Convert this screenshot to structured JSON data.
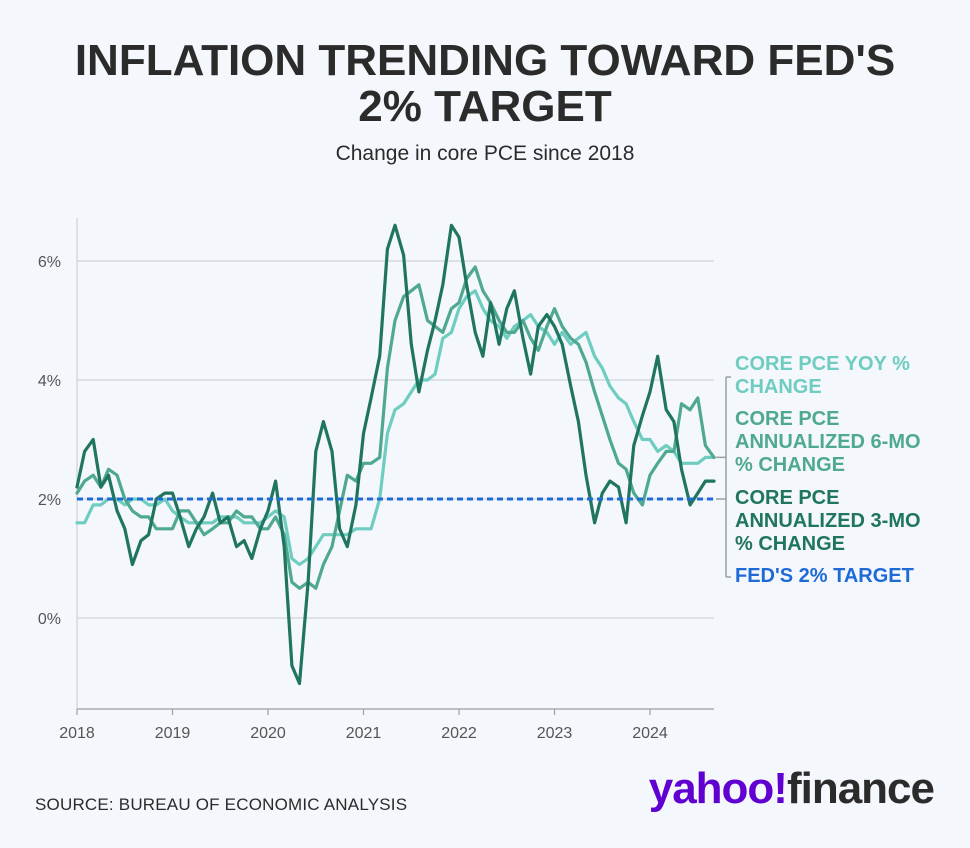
{
  "title": "INFLATION TRENDING TOWARD FED'S\n2% TARGET",
  "subtitle": "Change in core PCE since 2018",
  "source": "SOURCE: BUREAU OF ECONOMIC ANALYSIS",
  "brand": {
    "part1": "yahoo!",
    "part2": "finance"
  },
  "colors": {
    "background": "#f4f7fb",
    "yoy": "#6ecdc0",
    "six_mo": "#4fa990",
    "three_mo": "#1f7560",
    "target": "#1e6ad6",
    "grid": "#d5d9de",
    "axis_text": "#555555"
  },
  "chart_data": {
    "type": "line",
    "title": "INFLATION TRENDING TOWARD FED'S 2% TARGET",
    "subtitle": "Change in core PCE since 2018",
    "x_range": [
      2018.0,
      2024.67
    ],
    "ylim": [
      -1.5,
      6.8
    ],
    "y_ticks": [
      0,
      2,
      4,
      6
    ],
    "y_tick_labels": [
      "0%",
      "2%",
      "4%",
      "6%"
    ],
    "x_ticks": [
      2018,
      2019,
      2020,
      2021,
      2022,
      2023,
      2024
    ],
    "x_tick_labels": [
      "2018",
      "2019",
      "2020",
      "2021",
      "2022",
      "2023",
      "2024"
    ],
    "grid": true,
    "legend_position": "right",
    "target": {
      "name": "FED'S 2% TARGET",
      "value": 2
    },
    "series": [
      {
        "name": "CORE PCE YOY % CHANGE",
        "points": [
          [
            2018.0,
            1.6
          ],
          [
            2018.08,
            1.6
          ],
          [
            2018.17,
            1.9
          ],
          [
            2018.25,
            1.9
          ],
          [
            2018.33,
            2.0
          ],
          [
            2018.42,
            2.0
          ],
          [
            2018.5,
            1.9
          ],
          [
            2018.58,
            2.0
          ],
          [
            2018.67,
            2.0
          ],
          [
            2018.75,
            1.9
          ],
          [
            2018.83,
            1.9
          ],
          [
            2018.92,
            2.0
          ],
          [
            2019.0,
            1.8
          ],
          [
            2019.08,
            1.7
          ],
          [
            2019.17,
            1.6
          ],
          [
            2019.25,
            1.6
          ],
          [
            2019.33,
            1.6
          ],
          [
            2019.42,
            1.6
          ],
          [
            2019.5,
            1.7
          ],
          [
            2019.58,
            1.7
          ],
          [
            2019.67,
            1.7
          ],
          [
            2019.75,
            1.6
          ],
          [
            2019.83,
            1.6
          ],
          [
            2019.92,
            1.6
          ],
          [
            2020.0,
            1.7
          ],
          [
            2020.08,
            1.8
          ],
          [
            2020.17,
            1.7
          ],
          [
            2020.25,
            1.0
          ],
          [
            2020.33,
            0.9
          ],
          [
            2020.42,
            1.0
          ],
          [
            2020.5,
            1.2
          ],
          [
            2020.58,
            1.4
          ],
          [
            2020.67,
            1.4
          ],
          [
            2020.75,
            1.4
          ],
          [
            2020.83,
            1.4
          ],
          [
            2020.92,
            1.5
          ],
          [
            2021.0,
            1.5
          ],
          [
            2021.08,
            1.5
          ],
          [
            2021.17,
            2.0
          ],
          [
            2021.25,
            3.1
          ],
          [
            2021.33,
            3.5
          ],
          [
            2021.42,
            3.6
          ],
          [
            2021.5,
            3.8
          ],
          [
            2021.58,
            4.0
          ],
          [
            2021.67,
            4.0
          ],
          [
            2021.75,
            4.1
          ],
          [
            2021.83,
            4.7
          ],
          [
            2021.92,
            4.8
          ],
          [
            2022.0,
            5.2
          ],
          [
            2022.08,
            5.4
          ],
          [
            2022.17,
            5.5
          ],
          [
            2022.25,
            5.2
          ],
          [
            2022.33,
            5.0
          ],
          [
            2022.42,
            4.9
          ],
          [
            2022.5,
            4.7
          ],
          [
            2022.58,
            4.9
          ],
          [
            2022.67,
            5.0
          ],
          [
            2022.75,
            5.1
          ],
          [
            2022.83,
            4.9
          ],
          [
            2022.92,
            4.8
          ],
          [
            2023.0,
            4.6
          ],
          [
            2023.08,
            4.8
          ],
          [
            2023.17,
            4.6
          ],
          [
            2023.25,
            4.7
          ],
          [
            2023.33,
            4.8
          ],
          [
            2023.42,
            4.4
          ],
          [
            2023.5,
            4.2
          ],
          [
            2023.58,
            3.9
          ],
          [
            2023.67,
            3.7
          ],
          [
            2023.75,
            3.6
          ],
          [
            2023.83,
            3.3
          ],
          [
            2023.92,
            3.0
          ],
          [
            2024.0,
            3.0
          ],
          [
            2024.08,
            2.8
          ],
          [
            2024.17,
            2.9
          ],
          [
            2024.25,
            2.8
          ],
          [
            2024.33,
            2.6
          ],
          [
            2024.42,
            2.6
          ],
          [
            2024.5,
            2.6
          ],
          [
            2024.58,
            2.7
          ],
          [
            2024.67,
            2.7
          ]
        ]
      },
      {
        "name": "CORE PCE ANNUALIZED 6-MO % CHANGE",
        "points": [
          [
            2018.0,
            2.1
          ],
          [
            2018.08,
            2.3
          ],
          [
            2018.17,
            2.4
          ],
          [
            2018.25,
            2.2
          ],
          [
            2018.33,
            2.5
          ],
          [
            2018.42,
            2.4
          ],
          [
            2018.5,
            2.0
          ],
          [
            2018.58,
            1.8
          ],
          [
            2018.67,
            1.7
          ],
          [
            2018.75,
            1.7
          ],
          [
            2018.83,
            1.5
          ],
          [
            2018.92,
            1.5
          ],
          [
            2019.0,
            1.5
          ],
          [
            2019.08,
            1.8
          ],
          [
            2019.17,
            1.8
          ],
          [
            2019.25,
            1.6
          ],
          [
            2019.33,
            1.4
          ],
          [
            2019.42,
            1.5
          ],
          [
            2019.5,
            1.6
          ],
          [
            2019.58,
            1.6
          ],
          [
            2019.67,
            1.8
          ],
          [
            2019.75,
            1.7
          ],
          [
            2019.83,
            1.7
          ],
          [
            2019.92,
            1.5
          ],
          [
            2020.0,
            1.5
          ],
          [
            2020.08,
            1.7
          ],
          [
            2020.17,
            1.4
          ],
          [
            2020.25,
            0.6
          ],
          [
            2020.33,
            0.5
          ],
          [
            2020.42,
            0.6
          ],
          [
            2020.5,
            0.5
          ],
          [
            2020.58,
            0.9
          ],
          [
            2020.67,
            1.2
          ],
          [
            2020.75,
            1.8
          ],
          [
            2020.83,
            2.4
          ],
          [
            2020.92,
            2.3
          ],
          [
            2021.0,
            2.6
          ],
          [
            2021.08,
            2.6
          ],
          [
            2021.17,
            2.7
          ],
          [
            2021.25,
            4.2
          ],
          [
            2021.33,
            5.0
          ],
          [
            2021.42,
            5.4
          ],
          [
            2021.5,
            5.5
          ],
          [
            2021.58,
            5.6
          ],
          [
            2021.67,
            5.0
          ],
          [
            2021.75,
            4.9
          ],
          [
            2021.83,
            4.8
          ],
          [
            2021.92,
            5.2
          ],
          [
            2022.0,
            5.3
          ],
          [
            2022.08,
            5.7
          ],
          [
            2022.17,
            5.9
          ],
          [
            2022.25,
            5.5
          ],
          [
            2022.33,
            5.3
          ],
          [
            2022.42,
            5.0
          ],
          [
            2022.5,
            4.8
          ],
          [
            2022.58,
            4.8
          ],
          [
            2022.67,
            5.0
          ],
          [
            2022.75,
            4.7
          ],
          [
            2022.83,
            4.5
          ],
          [
            2022.92,
            4.9
          ],
          [
            2023.0,
            5.2
          ],
          [
            2023.08,
            4.9
          ],
          [
            2023.17,
            4.7
          ],
          [
            2023.25,
            4.6
          ],
          [
            2023.33,
            4.3
          ],
          [
            2023.42,
            3.8
          ],
          [
            2023.5,
            3.4
          ],
          [
            2023.58,
            3.0
          ],
          [
            2023.67,
            2.6
          ],
          [
            2023.75,
            2.5
          ],
          [
            2023.83,
            2.1
          ],
          [
            2023.92,
            1.9
          ],
          [
            2024.0,
            2.4
          ],
          [
            2024.08,
            2.6
          ],
          [
            2024.17,
            2.8
          ],
          [
            2024.25,
            2.8
          ],
          [
            2024.33,
            3.6
          ],
          [
            2024.42,
            3.5
          ],
          [
            2024.5,
            3.7
          ],
          [
            2024.58,
            2.9
          ],
          [
            2024.67,
            2.7
          ]
        ]
      },
      {
        "name": "CORE PCE ANNUALIZED 3-MO % CHANGE",
        "points": [
          [
            2018.0,
            2.2
          ],
          [
            2018.08,
            2.8
          ],
          [
            2018.17,
            3.0
          ],
          [
            2018.25,
            2.2
          ],
          [
            2018.33,
            2.4
          ],
          [
            2018.42,
            1.8
          ],
          [
            2018.5,
            1.5
          ],
          [
            2018.58,
            0.9
          ],
          [
            2018.67,
            1.3
          ],
          [
            2018.75,
            1.4
          ],
          [
            2018.83,
            2.0
          ],
          [
            2018.92,
            2.1
          ],
          [
            2019.0,
            2.1
          ],
          [
            2019.08,
            1.7
          ],
          [
            2019.17,
            1.2
          ],
          [
            2019.25,
            1.5
          ],
          [
            2019.33,
            1.7
          ],
          [
            2019.42,
            2.1
          ],
          [
            2019.5,
            1.6
          ],
          [
            2019.58,
            1.7
          ],
          [
            2019.67,
            1.2
          ],
          [
            2019.75,
            1.3
          ],
          [
            2019.83,
            1.0
          ],
          [
            2019.92,
            1.5
          ],
          [
            2020.0,
            1.8
          ],
          [
            2020.08,
            2.3
          ],
          [
            2020.17,
            1.2
          ],
          [
            2020.25,
            -0.8
          ],
          [
            2020.33,
            -1.1
          ],
          [
            2020.42,
            0.6
          ],
          [
            2020.5,
            2.8
          ],
          [
            2020.58,
            3.3
          ],
          [
            2020.67,
            2.8
          ],
          [
            2020.75,
            1.5
          ],
          [
            2020.83,
            1.2
          ],
          [
            2020.92,
            1.9
          ],
          [
            2021.0,
            3.1
          ],
          [
            2021.08,
            3.7
          ],
          [
            2021.17,
            4.4
          ],
          [
            2021.25,
            6.2
          ],
          [
            2021.33,
            6.6
          ],
          [
            2021.42,
            6.1
          ],
          [
            2021.5,
            4.6
          ],
          [
            2021.58,
            3.8
          ],
          [
            2021.67,
            4.5
          ],
          [
            2021.75,
            5.0
          ],
          [
            2021.83,
            5.6
          ],
          [
            2021.92,
            6.6
          ],
          [
            2022.0,
            6.4
          ],
          [
            2022.08,
            5.6
          ],
          [
            2022.17,
            4.8
          ],
          [
            2022.25,
            4.4
          ],
          [
            2022.33,
            5.3
          ],
          [
            2022.42,
            4.6
          ],
          [
            2022.5,
            5.2
          ],
          [
            2022.58,
            5.5
          ],
          [
            2022.67,
            4.7
          ],
          [
            2022.75,
            4.1
          ],
          [
            2022.83,
            4.9
          ],
          [
            2022.92,
            5.1
          ],
          [
            2023.0,
            4.9
          ],
          [
            2023.08,
            4.6
          ],
          [
            2023.17,
            3.9
          ],
          [
            2023.25,
            3.3
          ],
          [
            2023.33,
            2.4
          ],
          [
            2023.42,
            1.6
          ],
          [
            2023.5,
            2.1
          ],
          [
            2023.58,
            2.3
          ],
          [
            2023.67,
            2.2
          ],
          [
            2023.75,
            1.6
          ],
          [
            2023.83,
            2.9
          ],
          [
            2023.92,
            3.4
          ],
          [
            2024.0,
            3.8
          ],
          [
            2024.08,
            4.4
          ],
          [
            2024.17,
            3.5
          ],
          [
            2024.25,
            3.3
          ],
          [
            2024.33,
            2.5
          ],
          [
            2024.42,
            1.9
          ],
          [
            2024.5,
            2.1
          ],
          [
            2024.58,
            2.3
          ],
          [
            2024.67,
            2.3
          ]
        ]
      }
    ]
  }
}
